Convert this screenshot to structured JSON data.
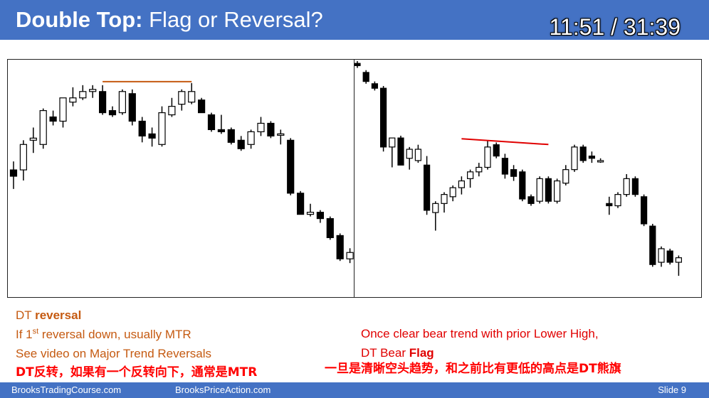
{
  "header": {
    "title_bold": "Double Top:",
    "title_rest": "Flag or Reversal?",
    "timer": "11:51 / 31:39"
  },
  "notes_left": {
    "line1_prefix": "DT ",
    "line1_bold": "reversal",
    "line2_a": "If 1",
    "line2_sup": "st",
    "line2_b": " reversal down, usually MTR",
    "line3": "See video on Major Trend Reversals"
  },
  "notes_right": {
    "line1": "Once clear bear trend with prior Lower High,",
    "line2_prefix": "DT Bear ",
    "line2_bold": "Flag"
  },
  "subtitles": {
    "left": "DT反转，如果有一个反转向下，通常是MTR",
    "right": "一旦是清晰空头趋势，和之前比有更低的高点是DT熊旗"
  },
  "footer": {
    "left": "BrooksTradingCourse.com",
    "middle": "BrooksPriceAction.com",
    "right": "Slide  9"
  },
  "colors": {
    "header_bg": "#4472c4",
    "left_notes": "#c55a11",
    "right_notes": "#e00000",
    "subtitle": "#ff0000",
    "left_dt_line": "#c55a11",
    "right_dt_line": "#e00000"
  },
  "chart_data": [
    {
      "type": "candlestick",
      "title": "",
      "price_range": [
        0,
        100
      ],
      "double_top_line": {
        "from_bar": 9,
        "to_bar": 18,
        "price": 93
      },
      "candles": [
        {
          "o": 52,
          "h": 56,
          "l": 43,
          "c": 49
        },
        {
          "o": 52,
          "h": 66,
          "l": 47,
          "c": 64
        },
        {
          "o": 66,
          "h": 72,
          "l": 60,
          "c": 67
        },
        {
          "o": 64,
          "h": 81,
          "l": 62,
          "c": 80
        },
        {
          "o": 77,
          "h": 80,
          "l": 73,
          "c": 75
        },
        {
          "o": 75,
          "h": 86,
          "l": 72,
          "c": 86
        },
        {
          "o": 84,
          "h": 91,
          "l": 82,
          "c": 86
        },
        {
          "o": 86,
          "h": 92,
          "l": 85,
          "c": 89
        },
        {
          "o": 89,
          "h": 92,
          "l": 86,
          "c": 90
        },
        {
          "o": 89,
          "h": 92,
          "l": 78,
          "c": 79
        },
        {
          "o": 80,
          "h": 82,
          "l": 77,
          "c": 78
        },
        {
          "o": 79,
          "h": 90,
          "l": 78,
          "c": 89
        },
        {
          "o": 88,
          "h": 90,
          "l": 73,
          "c": 75
        },
        {
          "o": 75,
          "h": 77,
          "l": 65,
          "c": 68
        },
        {
          "o": 69,
          "h": 72,
          "l": 63,
          "c": 67
        },
        {
          "o": 64,
          "h": 82,
          "l": 63,
          "c": 79
        },
        {
          "o": 78,
          "h": 86,
          "l": 77,
          "c": 82
        },
        {
          "o": 83,
          "h": 90,
          "l": 80,
          "c": 89
        },
        {
          "o": 84,
          "h": 93,
          "l": 83,
          "c": 89
        },
        {
          "o": 85,
          "h": 86,
          "l": 79,
          "c": 79
        },
        {
          "o": 78,
          "h": 79,
          "l": 70,
          "c": 71
        },
        {
          "o": 71,
          "h": 78,
          "l": 69,
          "c": 70
        },
        {
          "o": 71,
          "h": 72,
          "l": 64,
          "c": 65
        },
        {
          "o": 66,
          "h": 68,
          "l": 61,
          "c": 62
        },
        {
          "o": 64,
          "h": 71,
          "l": 62,
          "c": 70
        },
        {
          "o": 70,
          "h": 77,
          "l": 68,
          "c": 74
        },
        {
          "o": 74,
          "h": 75,
          "l": 67,
          "c": 68
        },
        {
          "o": 69,
          "h": 71,
          "l": 64,
          "c": 69
        },
        {
          "o": 66,
          "h": 67,
          "l": 40,
          "c": 41
        },
        {
          "o": 41,
          "h": 42,
          "l": 31,
          "c": 31
        },
        {
          "o": 31,
          "h": 36,
          "l": 30,
          "c": 32
        },
        {
          "o": 32,
          "h": 33,
          "l": 27,
          "c": 29
        },
        {
          "o": 29,
          "h": 30,
          "l": 19,
          "c": 20
        },
        {
          "o": 21,
          "h": 22,
          "l": 9,
          "c": 10
        },
        {
          "o": 10,
          "h": 15,
          "l": 8,
          "c": 13
        }
      ]
    },
    {
      "type": "candlestick",
      "title": "",
      "price_range": [
        0,
        100
      ],
      "double_top_line": {
        "from_bar": 12,
        "to_bar": 22,
        "price": 65
      },
      "candles": [
        {
          "o": 99,
          "h": 100,
          "l": 97,
          "c": 98
        },
        {
          "o": 95,
          "h": 96,
          "l": 90,
          "c": 91
        },
        {
          "o": 90,
          "h": 91,
          "l": 87,
          "c": 88
        },
        {
          "o": 88,
          "h": 89,
          "l": 60,
          "c": 62
        },
        {
          "o": 62,
          "h": 66,
          "l": 53,
          "c": 66
        },
        {
          "o": 66,
          "h": 67,
          "l": 54,
          "c": 54
        },
        {
          "o": 57,
          "h": 62,
          "l": 52,
          "c": 61
        },
        {
          "o": 56,
          "h": 63,
          "l": 55,
          "c": 61
        },
        {
          "o": 54,
          "h": 58,
          "l": 32,
          "c": 34
        },
        {
          "o": 33,
          "h": 38,
          "l": 25,
          "c": 37
        },
        {
          "o": 37,
          "h": 42,
          "l": 33,
          "c": 41
        },
        {
          "o": 40,
          "h": 45,
          "l": 38,
          "c": 44
        },
        {
          "o": 44,
          "h": 49,
          "l": 41,
          "c": 47
        },
        {
          "o": 48,
          "h": 52,
          "l": 44,
          "c": 51
        },
        {
          "o": 51,
          "h": 55,
          "l": 49,
          "c": 53
        },
        {
          "o": 53,
          "h": 65,
          "l": 52,
          "c": 62
        },
        {
          "o": 63,
          "h": 64,
          "l": 57,
          "c": 58
        },
        {
          "o": 57,
          "h": 59,
          "l": 48,
          "c": 50
        },
        {
          "o": 52,
          "h": 54,
          "l": 47,
          "c": 49
        },
        {
          "o": 51,
          "h": 52,
          "l": 38,
          "c": 39
        },
        {
          "o": 40,
          "h": 41,
          "l": 36,
          "c": 37
        },
        {
          "o": 38,
          "h": 49,
          "l": 37,
          "c": 48
        },
        {
          "o": 48,
          "h": 49,
          "l": 37,
          "c": 38
        },
        {
          "o": 38,
          "h": 48,
          "l": 37,
          "c": 47
        },
        {
          "o": 46,
          "h": 54,
          "l": 45,
          "c": 52
        },
        {
          "o": 52,
          "h": 63,
          "l": 51,
          "c": 62
        },
        {
          "o": 62,
          "h": 63,
          "l": 55,
          "c": 56
        },
        {
          "o": 58,
          "h": 60,
          "l": 55,
          "c": 57
        },
        {
          "o": 56,
          "h": 57,
          "l": 55,
          "c": 56
        },
        {
          "o": 37,
          "h": 40,
          "l": 32,
          "c": 36
        },
        {
          "o": 36,
          "h": 42,
          "l": 35,
          "c": 41
        },
        {
          "o": 41,
          "h": 50,
          "l": 40,
          "c": 48
        },
        {
          "o": 48,
          "h": 49,
          "l": 40,
          "c": 41
        },
        {
          "o": 40,
          "h": 41,
          "l": 27,
          "c": 28
        },
        {
          "o": 27,
          "h": 28,
          "l": 9,
          "c": 10
        },
        {
          "o": 11,
          "h": 18,
          "l": 9,
          "c": 17
        },
        {
          "o": 16,
          "h": 17,
          "l": 10,
          "c": 11
        },
        {
          "o": 11,
          "h": 14,
          "l": 5,
          "c": 13
        }
      ]
    }
  ]
}
